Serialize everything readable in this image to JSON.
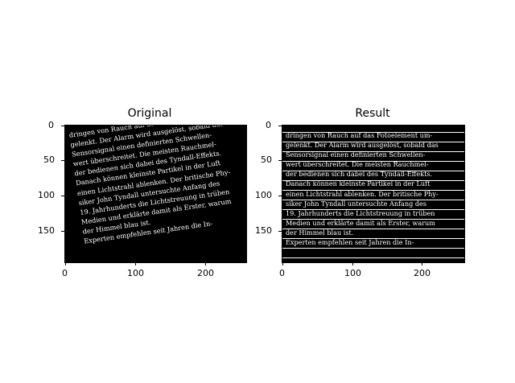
{
  "panels": [
    {
      "title": "Original"
    },
    {
      "title": "Result"
    }
  ],
  "axes": {
    "x_ticks": [
      "0",
      "100",
      "200"
    ],
    "y_ticks": [
      "0",
      "50",
      "100",
      "150"
    ]
  },
  "document_lines": [
    "dringen von Rauch auf das Fotoelement um-",
    "gelenkt. Der Alarm wird ausgelöst, sobald das",
    "Sensorsignal einen definierten Schwellen-",
    "wert überschreitet. Die meisten Rauchmel-",
    "der bedienen sich dabei des Tyndall-Effekts.",
    "Danach können kleinste Partikel in der Luft",
    "einen Lichtstrahl ablenken. Der britische Phy-",
    "siker John Tyndall untersuchte Anfang des",
    "19. Jahrhunderts die Lichtstreuung in trüben",
    "Medien und erklärte damit als Erster, warum",
    "der Himmel blau ist.",
    "Experten empfehlen seit Jahren die In-"
  ]
}
